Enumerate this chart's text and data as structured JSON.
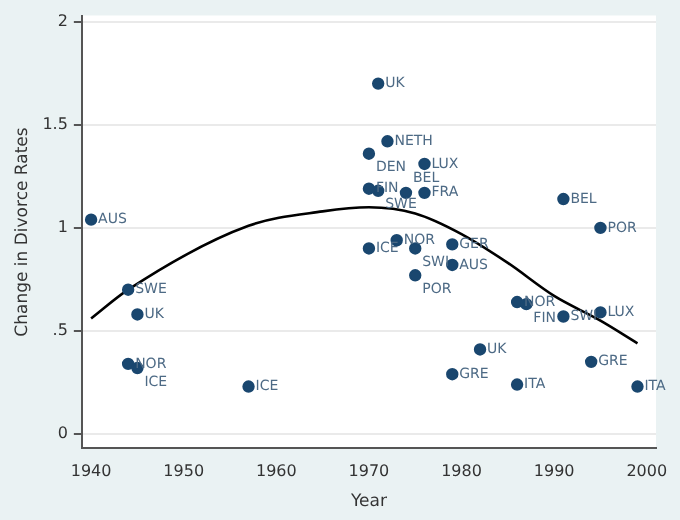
{
  "chart_data": {
    "type": "scatter",
    "xlabel": "Year",
    "ylabel": "Change in Divorce Rates",
    "xlim": [
      1939,
      2001
    ],
    "xticks": [
      1940,
      1950,
      1960,
      1970,
      1980,
      1990,
      2000
    ],
    "ylim": [
      -0.07,
      2.03
    ],
    "yticks": [
      0,
      {
        "value": 0.5,
        "label": ".5"
      },
      1,
      1.5,
      2
    ],
    "grid": "y",
    "marker": "circle",
    "legend": false,
    "series": [
      {
        "type": "scatter",
        "color": "#1a476f",
        "x": [
          1940,
          1944,
          1945,
          1944,
          1945,
          1957,
          1971,
          1972,
          1970,
          1976,
          1970,
          1971,
          1974,
          1976,
          1991,
          1995,
          1970,
          1973,
          1975,
          1979,
          1979,
          1975,
          1986,
          1987,
          1991,
          1995,
          1982,
          1979,
          1986,
          1994,
          1999
        ],
        "values": [
          1.04,
          0.7,
          0.58,
          0.34,
          0.32,
          0.23,
          1.7,
          1.42,
          1.36,
          1.31,
          1.19,
          1.18,
          1.17,
          1.17,
          1.14,
          1.0,
          0.9,
          0.94,
          0.9,
          0.92,
          0.82,
          0.77,
          0.64,
          0.63,
          0.57,
          0.59,
          0.41,
          0.29,
          0.24,
          0.35,
          0.23
        ]
      },
      {
        "type": "line",
        "color": "#000000",
        "marker": "none",
        "x": [
          1940,
          1944,
          1957,
          1965,
          1970,
          1975,
          1980,
          1985,
          1990,
          1995,
          1999
        ],
        "values": [
          0.56,
          0.7,
          1.01,
          1.08,
          1.1,
          1.07,
          0.97,
          0.83,
          0.67,
          0.55,
          0.44
        ]
      }
    ],
    "annotations": [
      {
        "text": "AUS",
        "x": 1940,
        "y": 1.04
      },
      {
        "text": "SWE",
        "x": 1944,
        "y": 0.7
      },
      {
        "text": "UK",
        "x": 1945,
        "y": 0.58
      },
      {
        "text": "NOR",
        "x": 1944,
        "y": 0.34
      },
      {
        "text": "ICE",
        "x": 1945,
        "y": 0.32
      },
      {
        "text": "ICE",
        "x": 1957,
        "y": 0.23
      },
      {
        "text": "UK",
        "x": 1971,
        "y": 1.7
      },
      {
        "text": "NETH",
        "x": 1972,
        "y": 1.42
      },
      {
        "text": "DEN",
        "x": 1970,
        "y": 1.36
      },
      {
        "text": "LUX",
        "x": 1976,
        "y": 1.31
      },
      {
        "text": "FIN",
        "x": 1970,
        "y": 1.19
      },
      {
        "text": "SWE",
        "x": 1971,
        "y": 1.18
      },
      {
        "text": "BEL",
        "x": 1974,
        "y": 1.17
      },
      {
        "text": "FRA",
        "x": 1976,
        "y": 1.17
      },
      {
        "text": "BEL",
        "x": 1991,
        "y": 1.14
      },
      {
        "text": "POR",
        "x": 1995,
        "y": 1.0
      },
      {
        "text": "ICE",
        "x": 1970,
        "y": 0.9
      },
      {
        "text": "NOR",
        "x": 1973,
        "y": 0.94
      },
      {
        "text": "SWI",
        "x": 1975,
        "y": 0.9
      },
      {
        "text": "GER",
        "x": 1979,
        "y": 0.92
      },
      {
        "text": "AUS",
        "x": 1979,
        "y": 0.82
      },
      {
        "text": "POR",
        "x": 1975,
        "y": 0.77
      },
      {
        "text": "NOR",
        "x": 1986,
        "y": 0.64
      },
      {
        "text": "FIN",
        "x": 1987,
        "y": 0.63
      },
      {
        "text": "SWI",
        "x": 1991,
        "y": 0.57
      },
      {
        "text": "LUX",
        "x": 1995,
        "y": 0.59
      },
      {
        "text": "UK",
        "x": 1982,
        "y": 0.41
      },
      {
        "text": "GRE",
        "x": 1979,
        "y": 0.29
      },
      {
        "text": "ITA",
        "x": 1986,
        "y": 0.24
      },
      {
        "text": "GRE",
        "x": 1994,
        "y": 0.35
      },
      {
        "text": "ITA",
        "x": 1999,
        "y": 0.23
      }
    ]
  }
}
